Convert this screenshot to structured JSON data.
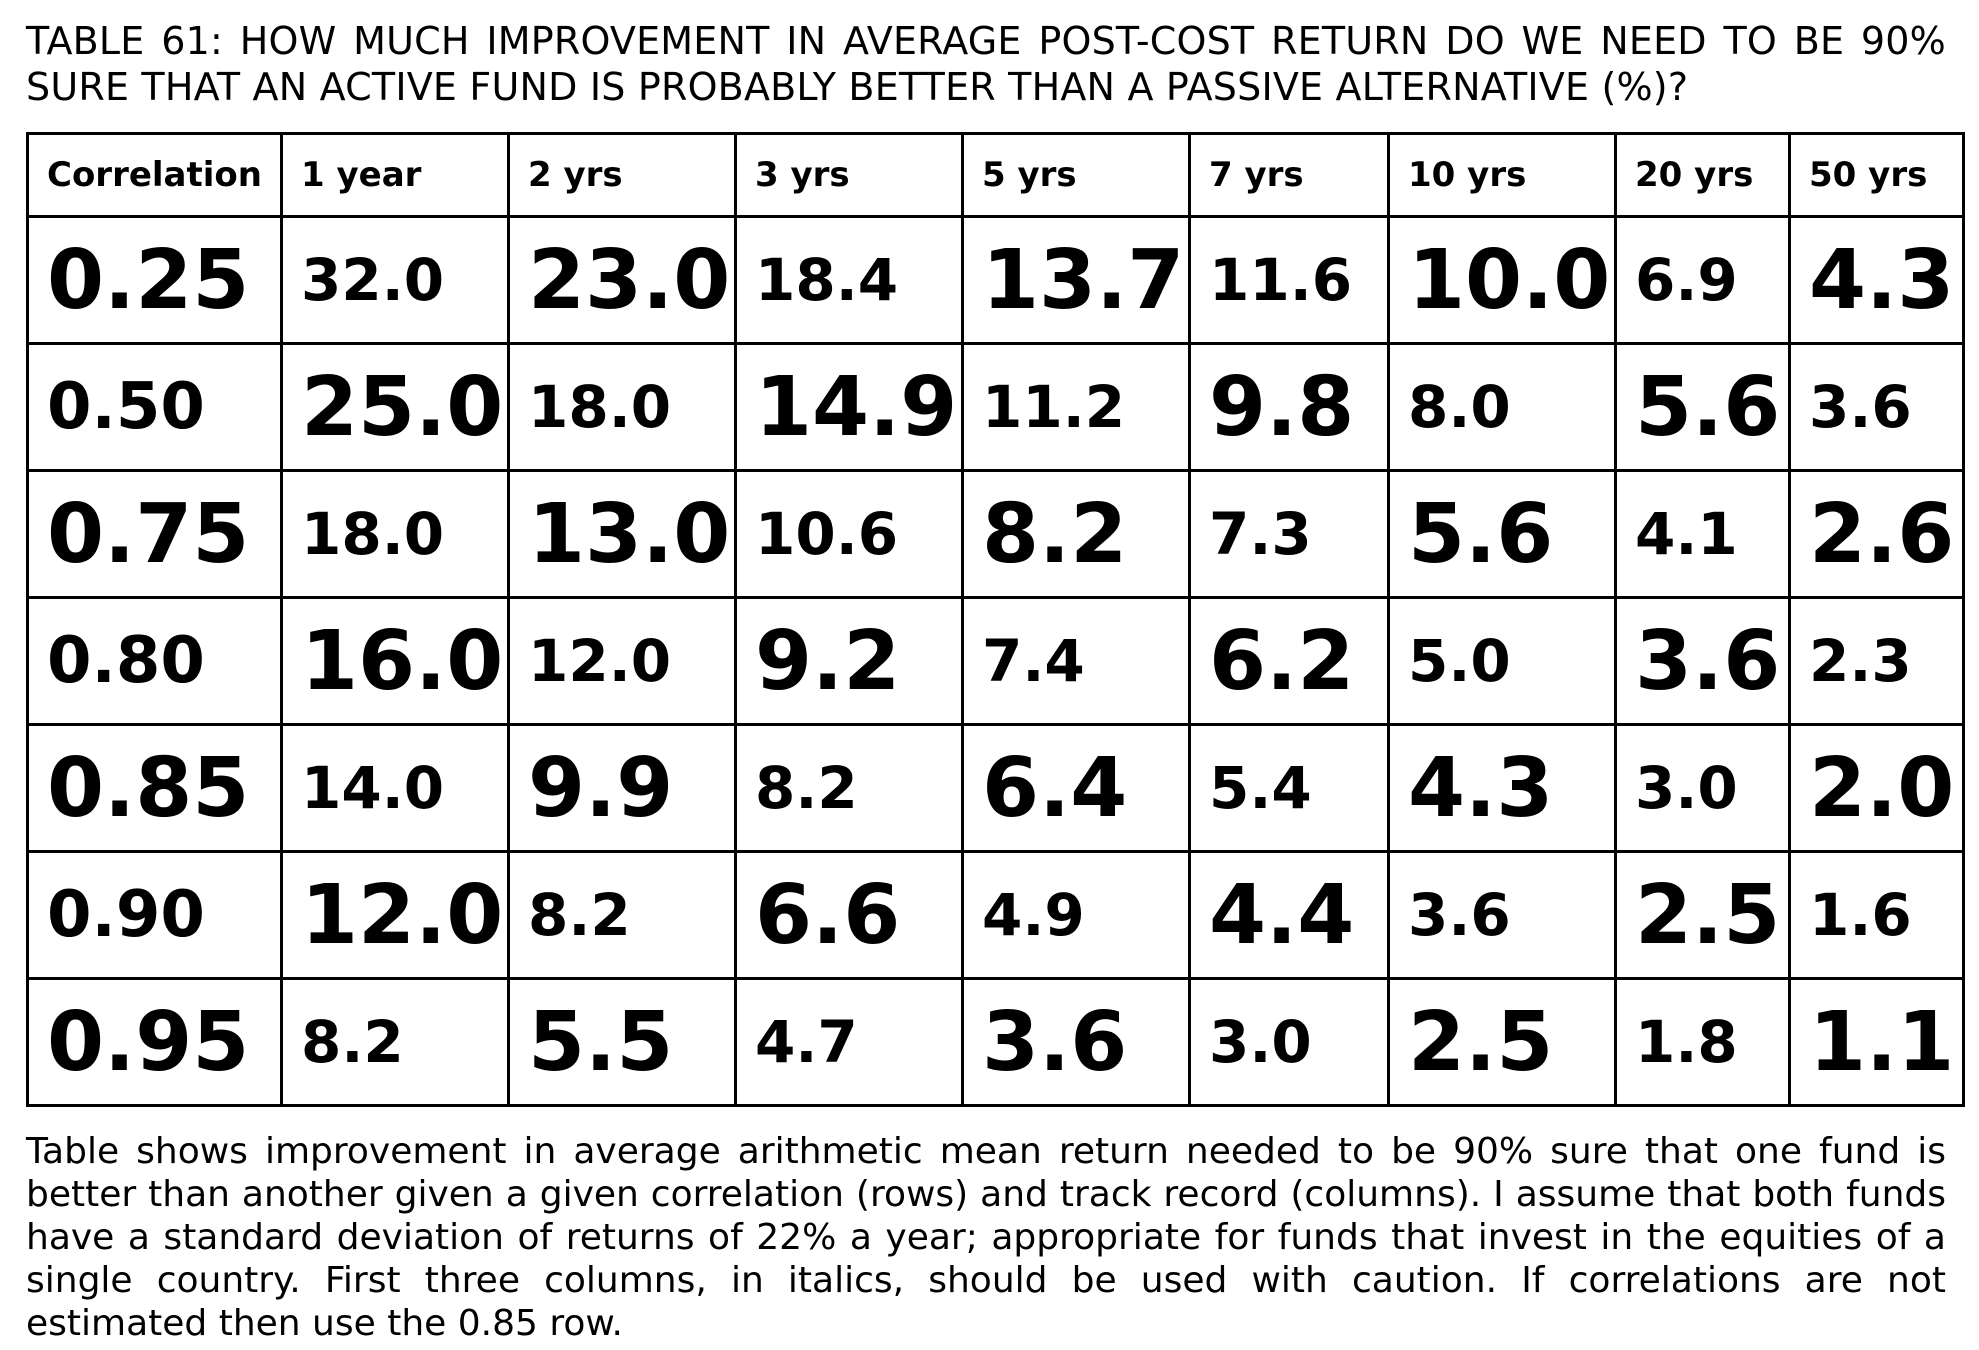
{
  "title": "TABLE 61: HOW MUCH IMPROVEMENT IN AVERAGE POST-COST RETURN DO WE NEED TO BE 90% SURE THAT AN ACTIVE FUND IS PROBABLY BETTER THAN A PASSIVE ALTERNATIVE (%)?",
  "table": {
    "headers": [
      "Correlation",
      "1 year",
      "2 yrs",
      "3 yrs",
      "5 yrs",
      "7 yrs",
      "10 yrs",
      "20 yrs",
      "50 yrs"
    ],
    "rows": [
      [
        "0.25",
        "32.0",
        "23.0",
        "18.4",
        "13.7",
        "11.6",
        "10.0",
        "6.9",
        "4.3"
      ],
      [
        "0.50",
        "25.0",
        "18.0",
        "14.9",
        "11.2",
        "9.8",
        "8.0",
        "5.6",
        "3.6"
      ],
      [
        "0.75",
        "18.0",
        "13.0",
        "10.6",
        "8.2",
        "7.3",
        "5.6",
        "4.1",
        "2.6"
      ],
      [
        "0.80",
        "16.0",
        "12.0",
        "9.2",
        "7.4",
        "6.2",
        "5.0",
        "3.6",
        "2.3"
      ],
      [
        "0.85",
        "14.0",
        "9.9",
        "8.2",
        "6.4",
        "5.4",
        "4.3",
        "3.0",
        "2.0"
      ],
      [
        "0.90",
        "12.0",
        "8.2",
        "6.6",
        "4.9",
        "4.4",
        "3.6",
        "2.5",
        "1.6"
      ],
      [
        "0.95",
        "8.2",
        "5.5",
        "4.7",
        "3.6",
        "3.0",
        "2.5",
        "1.8",
        "1.1"
      ]
    ]
  },
  "footnote": "Table shows improvement in average arithmetic mean return needed to be 90% sure that one fund is better than another given a given correlation (rows) and track record (columns). I assume that both funds have a standard deviation of returns of 22% a year; appropriate for funds that invest in the equities of a single country. First three columns, in italics, should be used with caution. If correlations are not estimated then use the 0.85 row."
}
